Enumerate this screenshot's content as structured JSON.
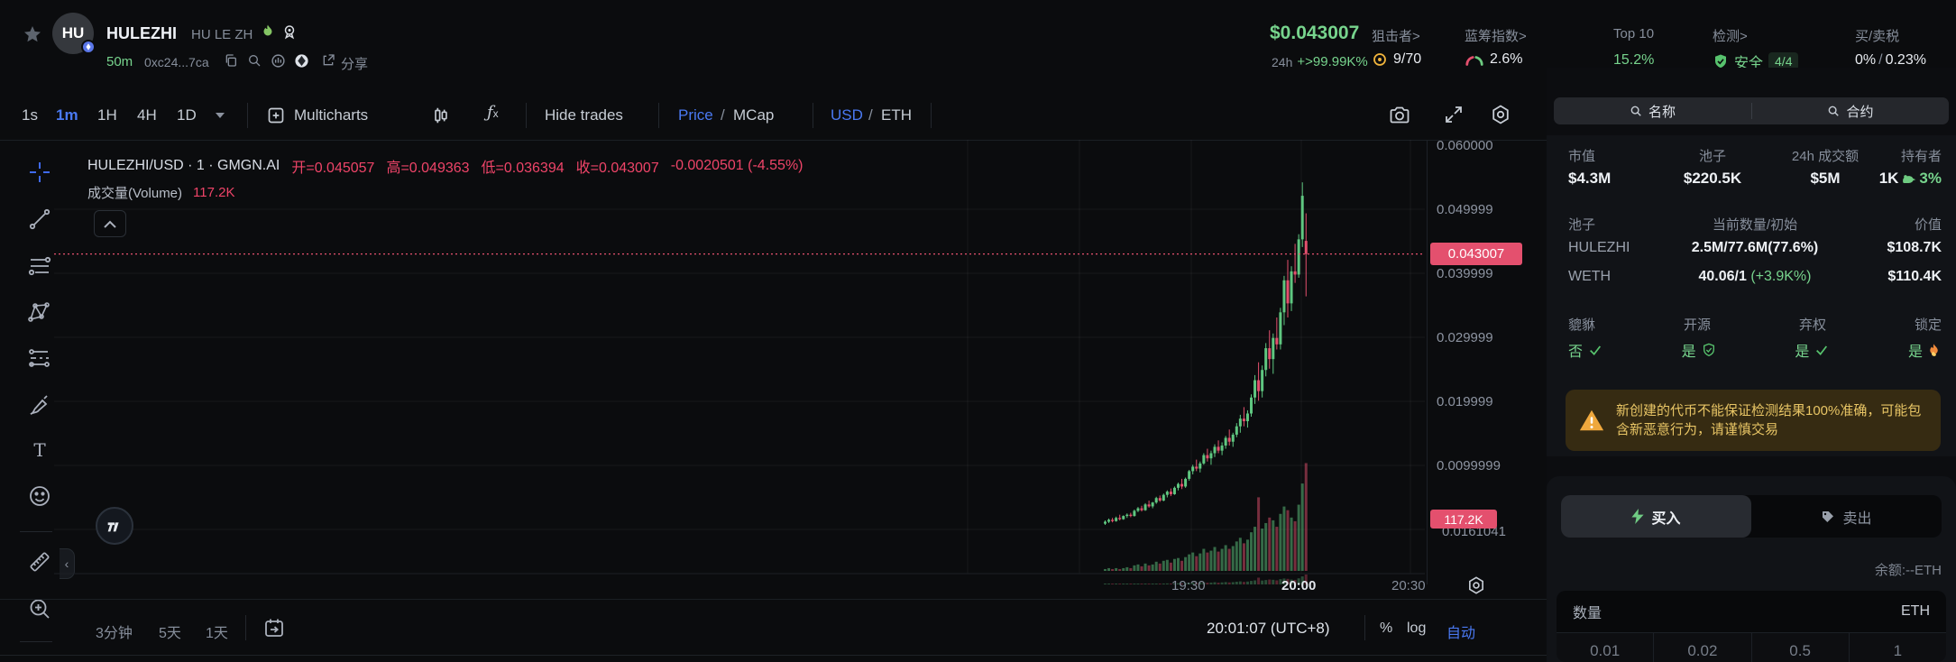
{
  "header": {
    "title": "HULEZHI",
    "subtitle": "HU LE ZH",
    "avatar_text": "HU",
    "age": "50m",
    "address": "0xc24...7ca",
    "share_label": "分享",
    "price": "$0.043007",
    "change_label": "24h",
    "change_value": "+>99.99K%",
    "sniper_label": "狙击者>",
    "sniper_value": "9/70",
    "bluechip_label": "蓝筹指数>",
    "bluechip_value": "2.6%",
    "top10_label": "Top 10",
    "top10_value": "15.2%",
    "audit_label": "检测>",
    "audit_value": "安全",
    "audit_badge": "4/4",
    "tax_label": "买/卖税",
    "tax_buy": "0%",
    "tax_sep": "/",
    "tax_sell": "0.23%"
  },
  "toolbar": {
    "intervals": [
      "1s",
      "1m",
      "1H",
      "4H",
      "1D"
    ],
    "active_interval": "1m",
    "multicharts": "Multicharts",
    "hide_trades": "Hide trades",
    "price": "Price",
    "mcap": "MCap",
    "usd": "USD",
    "eth": "ETH",
    "sep": "/"
  },
  "legend": {
    "pair": "HULEZHI/USD · 1 · GMGN.AI",
    "o": "开=0.045057",
    "h": "高=0.049363",
    "l": "低=0.036394",
    "c": "收=0.043007",
    "chg": "-0.0020501 (-4.55%)",
    "vol_label": "成交量(Volume)",
    "vol_value": "117.2K"
  },
  "axis": {
    "labels": [
      "0.060000",
      "0.049999",
      "0.039999",
      "0.029999",
      "0.019999",
      "0.0099999"
    ],
    "price_badge": "0.043007",
    "vol_badge": "117.2K",
    "overlap_label": "0.0161041",
    "times": [
      "19:30",
      "20:00",
      "20:30"
    ]
  },
  "bottom": {
    "ranges": [
      "3分钟",
      "5天",
      "1天"
    ],
    "clock": "20:01:07 (UTC+8)",
    "percent": "%",
    "log": "log",
    "auto": "自动"
  },
  "chart_data": {
    "type": "candlestick",
    "pair": "HULEZHI/USD",
    "interval": "1m",
    "start_time": "19:06",
    "x_tick_labels": [
      "19:30",
      "20:00",
      "20:30"
    ],
    "y_ticks": [
      0.06,
      0.05,
      0.04,
      0.03,
      0.02,
      0.01,
      0
    ],
    "ylim": [
      0,
      0.0615
    ],
    "current_price": 0.043007,
    "current_volume_k": 117.2,
    "ohlc_last": {
      "open": 0.045057,
      "high": 0.049363,
      "low": 0.036394,
      "close": 0.043007
    },
    "candles": [
      [
        0.0009,
        0.0014,
        0.0007,
        0.0012,
        2
      ],
      [
        0.0012,
        0.0017,
        0.001,
        0.0015,
        3
      ],
      [
        0.0015,
        0.0018,
        0.0011,
        0.0013,
        2
      ],
      [
        0.0013,
        0.002,
        0.0012,
        0.0018,
        3
      ],
      [
        0.0018,
        0.0023,
        0.0014,
        0.0016,
        2
      ],
      [
        0.0016,
        0.0022,
        0.0015,
        0.0021,
        3
      ],
      [
        0.0021,
        0.0025,
        0.0018,
        0.0023,
        4
      ],
      [
        0.0023,
        0.0026,
        0.0019,
        0.0021,
        3
      ],
      [
        0.0021,
        0.0031,
        0.002,
        0.0029,
        6
      ],
      [
        0.0029,
        0.0035,
        0.0027,
        0.0033,
        7
      ],
      [
        0.0033,
        0.0037,
        0.0028,
        0.003,
        5
      ],
      [
        0.003,
        0.0041,
        0.0029,
        0.0039,
        8
      ],
      [
        0.0039,
        0.0045,
        0.0034,
        0.0036,
        6
      ],
      [
        0.0036,
        0.0043,
        0.0033,
        0.0042,
        7
      ],
      [
        0.0042,
        0.0051,
        0.004,
        0.0049,
        10
      ],
      [
        0.0049,
        0.0053,
        0.0043,
        0.0045,
        8
      ],
      [
        0.0045,
        0.0056,
        0.0044,
        0.0054,
        11
      ],
      [
        0.0054,
        0.0061,
        0.005,
        0.0059,
        12
      ],
      [
        0.0059,
        0.0064,
        0.0052,
        0.0055,
        9
      ],
      [
        0.0055,
        0.0067,
        0.0054,
        0.0065,
        13
      ],
      [
        0.0065,
        0.0073,
        0.0061,
        0.0071,
        14
      ],
      [
        0.0071,
        0.0079,
        0.0063,
        0.0067,
        11
      ],
      [
        0.0067,
        0.0081,
        0.0065,
        0.0079,
        15
      ],
      [
        0.0079,
        0.0093,
        0.0076,
        0.0091,
        18
      ],
      [
        0.0091,
        0.0101,
        0.0086,
        0.0098,
        20
      ],
      [
        0.0098,
        0.0109,
        0.0091,
        0.0095,
        16
      ],
      [
        0.0095,
        0.0106,
        0.0089,
        0.0103,
        19
      ],
      [
        0.0103,
        0.0119,
        0.0101,
        0.0116,
        24
      ],
      [
        0.0116,
        0.0126,
        0.0106,
        0.0111,
        20
      ],
      [
        0.0111,
        0.0123,
        0.0101,
        0.0119,
        22
      ],
      [
        0.0119,
        0.0133,
        0.0113,
        0.0129,
        26
      ],
      [
        0.0129,
        0.0139,
        0.0119,
        0.0123,
        21
      ],
      [
        0.0123,
        0.0136,
        0.0116,
        0.0131,
        24
      ],
      [
        0.0131,
        0.0146,
        0.0126,
        0.0143,
        28
      ],
      [
        0.0143,
        0.0156,
        0.0131,
        0.0137,
        24
      ],
      [
        0.0137,
        0.0151,
        0.0129,
        0.0148,
        27
      ],
      [
        0.0148,
        0.0166,
        0.0144,
        0.0161,
        32
      ],
      [
        0.0161,
        0.0179,
        0.0151,
        0.0173,
        36
      ],
      [
        0.0173,
        0.0191,
        0.0161,
        0.0169,
        30
      ],
      [
        0.0169,
        0.0186,
        0.0159,
        0.0181,
        34
      ],
      [
        0.0181,
        0.0211,
        0.0176,
        0.0206,
        42
      ],
      [
        0.0206,
        0.0241,
        0.0196,
        0.0233,
        48
      ],
      [
        0.0233,
        0.0261,
        0.0201,
        0.0216,
        80
      ],
      [
        0.0216,
        0.0256,
        0.0206,
        0.0249,
        46
      ],
      [
        0.0249,
        0.0291,
        0.0239,
        0.0283,
        52
      ],
      [
        0.0283,
        0.0311,
        0.0251,
        0.0266,
        58
      ],
      [
        0.0266,
        0.0306,
        0.0243,
        0.0299,
        55
      ],
      [
        0.0299,
        0.0331,
        0.0281,
        0.0289,
        48
      ],
      [
        0.0289,
        0.0346,
        0.0281,
        0.0339,
        62
      ],
      [
        0.0339,
        0.0396,
        0.0319,
        0.0389,
        70
      ],
      [
        0.0389,
        0.0421,
        0.0331,
        0.0353,
        66
      ],
      [
        0.0353,
        0.0411,
        0.0341,
        0.0403,
        58
      ],
      [
        0.0403,
        0.0446,
        0.0385,
        0.0398,
        54
      ],
      [
        0.0398,
        0.0461,
        0.0393,
        0.0453,
        72
      ],
      [
        0.0453,
        0.0542,
        0.0441,
        0.0521,
        95
      ],
      [
        0.045057,
        0.049363,
        0.036394,
        0.043007,
        117.2
      ]
    ],
    "colors": {
      "up": "#5fc780",
      "down": "#e4506e",
      "grid": "rgba(255,255,255,0.05)",
      "price_line": "#e4506e"
    }
  },
  "panel": {
    "tabs": [
      "名称",
      "合约"
    ],
    "stats": {
      "mcap_label": "市值",
      "mcap": "$4.3M",
      "pool_label": "池子",
      "pool": "$220.5K",
      "vol_label": "24h 成交额",
      "vol": "$5M",
      "holders_label": "持有者",
      "holders": "1K",
      "holders_pct": "3%"
    },
    "pool": {
      "headers": [
        "池子",
        "当前数量/初始",
        "价值"
      ],
      "rows": [
        {
          "name": "HULEZHI",
          "amount": "2.5M/77.6M(77.6%)",
          "amount_extra": "",
          "value": "$108.7K"
        },
        {
          "name": "WETH",
          "amount": "40.06/1",
          "amount_extra": "(+3.9K%)",
          "value": "$110.4K"
        }
      ]
    },
    "security": {
      "items": [
        {
          "label": "貔貅",
          "value": "否",
          "icon": "check"
        },
        {
          "label": "开源",
          "value": "是",
          "icon": "shield-check"
        },
        {
          "label": "弃权",
          "value": "是",
          "icon": "check"
        },
        {
          "label": "锁定",
          "value": "是",
          "icon": "fire"
        }
      ]
    },
    "warning": "新创建的代币不能保证检测结果100%准确，可能包含新恶意行为，请谨慎交易",
    "trade": {
      "buy": "买入",
      "sell": "卖出",
      "balance": "余额:--ETH",
      "amount_label": "数量",
      "unit": "ETH",
      "presets": [
        "0.01",
        "0.02",
        "0.5",
        "1"
      ]
    }
  }
}
